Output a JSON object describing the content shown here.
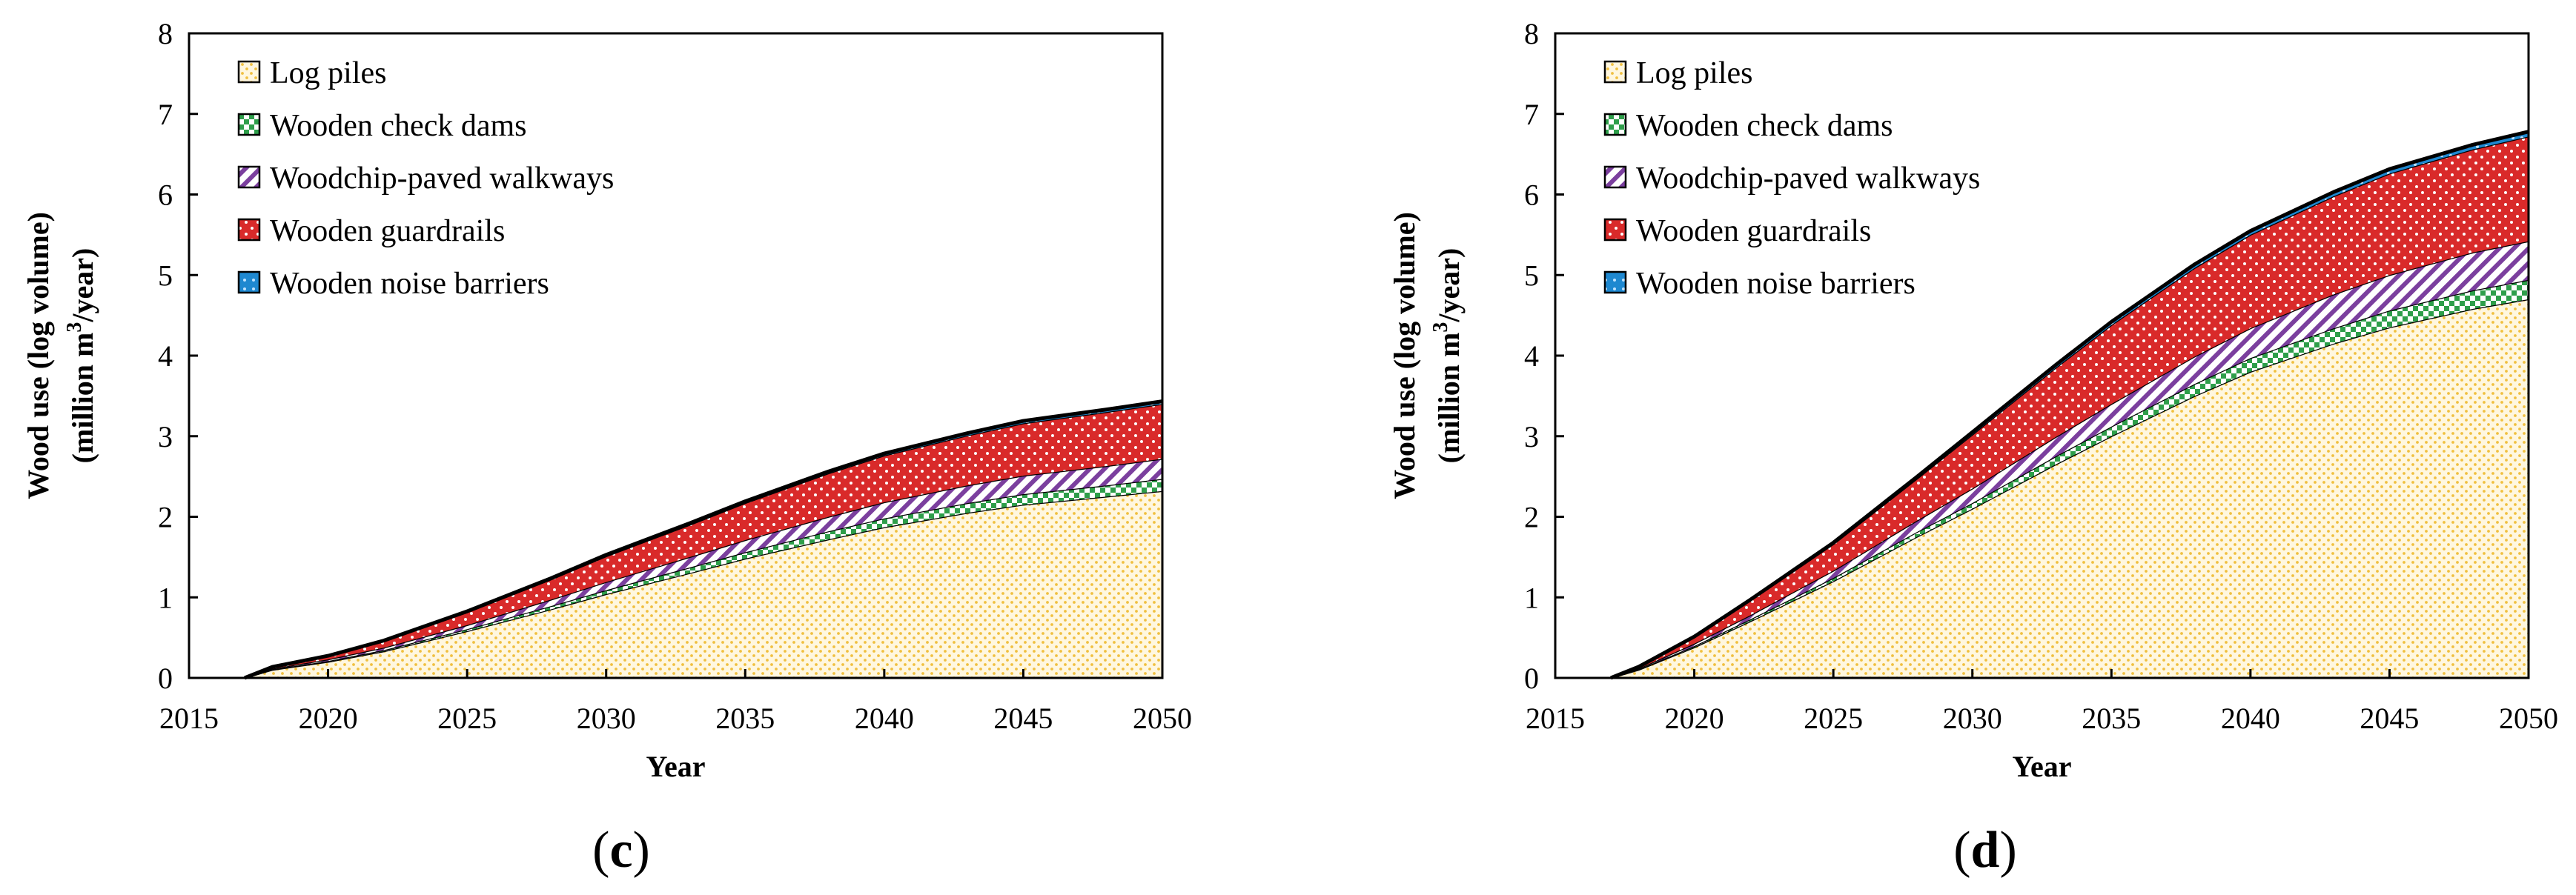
{
  "chart_data": [
    {
      "panel": "(c)",
      "panel_parts": [
        "(",
        "c",
        ")"
      ],
      "type": "area",
      "stacked": true,
      "xlabel": "Year",
      "ylabel_line1": "Wood use (log volume)",
      "ylabel_line2_pre": "(million m",
      "ylabel_line2_sup": "3",
      "ylabel_line2_post": "/year)",
      "xlim": [
        2015,
        2050
      ],
      "ylim": [
        0,
        8
      ],
      "xticks": [
        "2015",
        "2020",
        "2025",
        "2030",
        "2035",
        "2040",
        "2045",
        "2050"
      ],
      "yticks": [
        "0",
        "1",
        "2",
        "3",
        "4",
        "5",
        "6",
        "7",
        "8"
      ],
      "legend_position": "top-left",
      "x": [
        2017,
        2018,
        2020,
        2022,
        2025,
        2028,
        2030,
        2033,
        2035,
        2038,
        2040,
        2043,
        2045,
        2048,
        2050
      ],
      "series": [
        {
          "name": "Log piles",
          "color": "#f2c84b",
          "values": [
            0,
            0.1,
            0.2,
            0.33,
            0.58,
            0.85,
            1.04,
            1.3,
            1.48,
            1.72,
            1.87,
            2.05,
            2.15,
            2.25,
            2.32
          ]
        },
        {
          "name": "Wooden check dams",
          "color": "#2e9e4a",
          "values": [
            0,
            0.005,
            0.01,
            0.015,
            0.025,
            0.04,
            0.05,
            0.07,
            0.08,
            0.1,
            0.11,
            0.12,
            0.13,
            0.14,
            0.15
          ]
        },
        {
          "name": "Woodchip-paved walkways",
          "color": "#7b3f9e",
          "values": [
            0,
            0.01,
            0.02,
            0.03,
            0.05,
            0.08,
            0.1,
            0.13,
            0.15,
            0.18,
            0.2,
            0.22,
            0.23,
            0.24,
            0.25
          ]
        },
        {
          "name": "Wooden guardrails",
          "color": "#d92a2a",
          "values": [
            0,
            0.02,
            0.04,
            0.08,
            0.16,
            0.25,
            0.32,
            0.4,
            0.46,
            0.54,
            0.58,
            0.62,
            0.65,
            0.67,
            0.68
          ]
        },
        {
          "name": "Wooden noise barriers",
          "color": "#1e88d0",
          "values": [
            0,
            0.002,
            0.005,
            0.008,
            0.012,
            0.015,
            0.018,
            0.02,
            0.022,
            0.024,
            0.026,
            0.028,
            0.03,
            0.032,
            0.034
          ]
        }
      ]
    },
    {
      "panel": "(d)",
      "panel_parts": [
        "(",
        "d",
        ")"
      ],
      "type": "area",
      "stacked": true,
      "xlabel": "Year",
      "ylabel_line1": "Wood use (log volume)",
      "ylabel_line2_pre": "(million m",
      "ylabel_line2_sup": "3",
      "ylabel_line2_post": "/year)",
      "xlim": [
        2015,
        2050
      ],
      "ylim": [
        0,
        8
      ],
      "xticks": [
        "2015",
        "2020",
        "2025",
        "2030",
        "2035",
        "2040",
        "2045",
        "2050"
      ],
      "yticks": [
        "0",
        "1",
        "2",
        "3",
        "4",
        "5",
        "6",
        "7",
        "8"
      ],
      "legend_position": "top-left",
      "x": [
        2017,
        2018,
        2020,
        2022,
        2025,
        2028,
        2030,
        2033,
        2035,
        2038,
        2040,
        2043,
        2045,
        2048,
        2050
      ],
      "series": [
        {
          "name": "Log piles",
          "color": "#f2c84b",
          "values": [
            0,
            0.1,
            0.38,
            0.7,
            1.2,
            1.75,
            2.1,
            2.65,
            3.0,
            3.5,
            3.8,
            4.15,
            4.35,
            4.58,
            4.7
          ]
        },
        {
          "name": "Wooden check dams",
          "color": "#2e9e4a",
          "values": [
            0,
            0.005,
            0.015,
            0.025,
            0.04,
            0.06,
            0.07,
            0.1,
            0.12,
            0.15,
            0.17,
            0.19,
            0.21,
            0.23,
            0.24
          ]
        },
        {
          "name": "Woodchip-paved walkways",
          "color": "#7b3f9e",
          "values": [
            0,
            0.01,
            0.03,
            0.05,
            0.09,
            0.14,
            0.18,
            0.24,
            0.28,
            0.34,
            0.37,
            0.42,
            0.44,
            0.47,
            0.48
          ]
        },
        {
          "name": "Wooden guardrails",
          "color": "#d92a2a",
          "values": [
            0,
            0.02,
            0.08,
            0.18,
            0.33,
            0.52,
            0.67,
            0.86,
            0.98,
            1.1,
            1.16,
            1.22,
            1.26,
            1.28,
            1.3
          ]
        },
        {
          "name": "Wooden noise barriers",
          "color": "#1e88d0",
          "values": [
            0,
            0.003,
            0.008,
            0.012,
            0.018,
            0.025,
            0.03,
            0.036,
            0.04,
            0.045,
            0.048,
            0.052,
            0.055,
            0.058,
            0.06
          ]
        }
      ]
    }
  ]
}
